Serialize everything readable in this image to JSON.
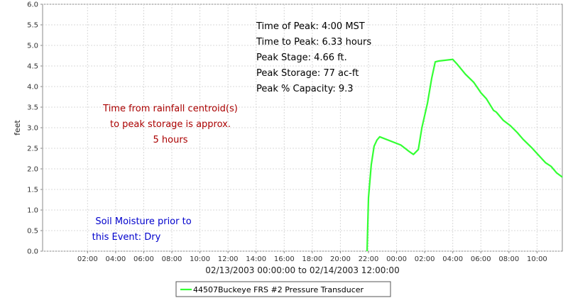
{
  "chart_data": {
    "type": "line",
    "ylabel": "feet",
    "xlabel": "02/13/2003 00:00:00 to 02/14/2003 12:00:00",
    "x_range_hours": [
      -1.2,
      35.8
    ],
    "ylim": [
      0,
      6
    ],
    "y_ticks": [
      "0.0",
      "0.5",
      "1.0",
      "1.5",
      "2.0",
      "2.5",
      "3.0",
      "3.5",
      "4.0",
      "4.5",
      "5.0",
      "5.5",
      "6.0"
    ],
    "x_ticks": [
      {
        "label": "02:00",
        "h": 2
      },
      {
        "label": "04:00",
        "h": 4
      },
      {
        "label": "06:00",
        "h": 6
      },
      {
        "label": "08:00",
        "h": 8
      },
      {
        "label": "10:00",
        "h": 10
      },
      {
        "label": "12:00",
        "h": 12
      },
      {
        "label": "14:00",
        "h": 14
      },
      {
        "label": "16:00",
        "h": 16
      },
      {
        "label": "18:00",
        "h": 18
      },
      {
        "label": "20:00",
        "h": 20
      },
      {
        "label": "22:00",
        "h": 22
      },
      {
        "label": "00:00",
        "h": 24
      },
      {
        "label": "02:00",
        "h": 26
      },
      {
        "label": "04:00",
        "h": 28
      },
      {
        "label": "06:00",
        "h": 30
      },
      {
        "label": "08:00",
        "h": 32
      },
      {
        "label": "10:00",
        "h": 34
      }
    ],
    "grid": true,
    "series": [
      {
        "name": "44507Buckeye FRS #2 Pressure Transducer",
        "color": "#33ff33",
        "points": [
          [
            21.9,
            0.0
          ],
          [
            22.0,
            1.3
          ],
          [
            22.2,
            2.1
          ],
          [
            22.4,
            2.55
          ],
          [
            22.6,
            2.7
          ],
          [
            22.8,
            2.78
          ],
          [
            24.3,
            2.58
          ],
          [
            24.9,
            2.42
          ],
          [
            25.2,
            2.35
          ],
          [
            25.55,
            2.47
          ],
          [
            25.8,
            3.0
          ],
          [
            26.2,
            3.6
          ],
          [
            26.5,
            4.2
          ],
          [
            26.75,
            4.6
          ],
          [
            27.0,
            4.62
          ],
          [
            28.0,
            4.66
          ],
          [
            28.3,
            4.55
          ],
          [
            28.9,
            4.3
          ],
          [
            29.5,
            4.1
          ],
          [
            30.0,
            3.85
          ],
          [
            30.4,
            3.7
          ],
          [
            30.9,
            3.42
          ],
          [
            31.1,
            3.38
          ],
          [
            31.6,
            3.18
          ],
          [
            32.1,
            3.05
          ],
          [
            32.6,
            2.88
          ],
          [
            33.0,
            2.72
          ],
          [
            33.6,
            2.52
          ],
          [
            34.2,
            2.3
          ],
          [
            34.6,
            2.15
          ],
          [
            35.0,
            2.06
          ],
          [
            35.4,
            1.9
          ],
          [
            35.8,
            1.8
          ]
        ]
      }
    ],
    "annotations": [
      {
        "id": "peak-info",
        "color": "#000000",
        "lines": [
          "Time of Peak: 4:00 MST",
          "Time to Peak: 6.33 hours",
          "Peak Stage: 4.66 ft.",
          "Peak Storage: 77 ac-ft",
          "Peak % Capacity: 9.3"
        ]
      },
      {
        "id": "centroid-note",
        "color": "#aa0000",
        "lines": [
          "Time from rainfall centroid(s)",
          "to peak storage is approx.",
          "5 hours"
        ]
      },
      {
        "id": "soil-note",
        "color": "#0000cc",
        "lines": [
          "Soil Moisture prior to",
          "this Event: Dry"
        ]
      }
    ],
    "legend": {
      "placement": "bottom",
      "entries": [
        "44507Buckeye FRS #2 Pressure Transducer"
      ]
    }
  }
}
